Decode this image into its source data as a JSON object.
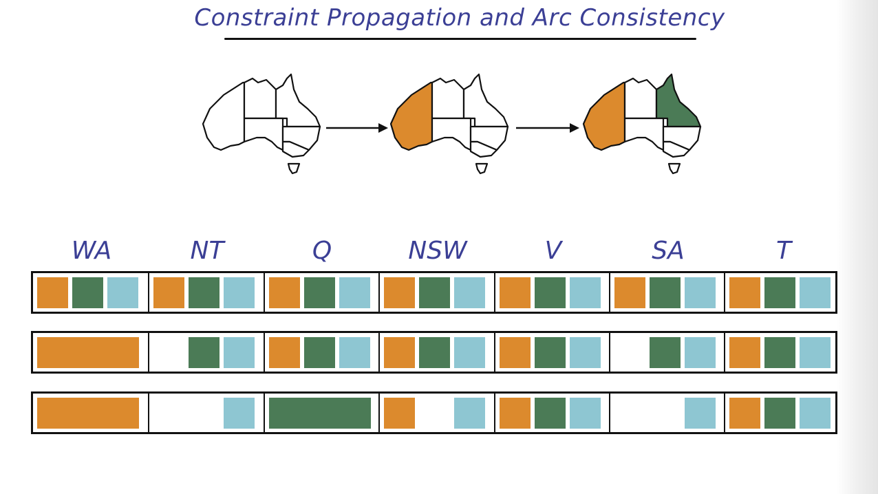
{
  "title": "Constraint Propagation and Arc Consistency",
  "colors": {
    "orange": "#dc8a2d",
    "green": "#4b7b56",
    "blue": "#8ec6d2",
    "label": "#3b3f95",
    "outline": "#111111"
  },
  "variables": [
    "WA",
    "NT",
    "Q",
    "NSW",
    "V",
    "SA",
    "T"
  ],
  "maps": [
    {
      "colored_regions": []
    },
    {
      "colored_regions": [
        {
          "region": "WA",
          "color": "orange"
        }
      ]
    },
    {
      "colored_regions": [
        {
          "region": "WA",
          "color": "orange"
        },
        {
          "region": "Q",
          "color": "green"
        }
      ]
    }
  ],
  "domains": [
    {
      "WA": [
        "orange",
        "green",
        "blue"
      ],
      "NT": [
        "orange",
        "green",
        "blue"
      ],
      "Q": [
        "orange",
        "green",
        "blue"
      ],
      "NSW": [
        "orange",
        "green",
        "blue"
      ],
      "V": [
        "orange",
        "green",
        "blue"
      ],
      "SA": [
        "orange",
        "green",
        "blue"
      ],
      "T": [
        "orange",
        "green",
        "blue"
      ]
    },
    {
      "WA": [
        "orange"
      ],
      "NT": [
        "green",
        "blue"
      ],
      "Q": [
        "orange",
        "green",
        "blue"
      ],
      "NSW": [
        "orange",
        "green",
        "blue"
      ],
      "V": [
        "orange",
        "green",
        "blue"
      ],
      "SA": [
        "green",
        "blue"
      ],
      "T": [
        "orange",
        "green",
        "blue"
      ]
    },
    {
      "WA": [
        "orange"
      ],
      "NT": [
        "blue"
      ],
      "Q": [
        "green"
      ],
      "NSW": [
        "orange",
        "blue"
      ],
      "V": [
        "orange",
        "green",
        "blue"
      ],
      "SA": [
        "blue"
      ],
      "T": [
        "orange",
        "green",
        "blue"
      ]
    }
  ]
}
